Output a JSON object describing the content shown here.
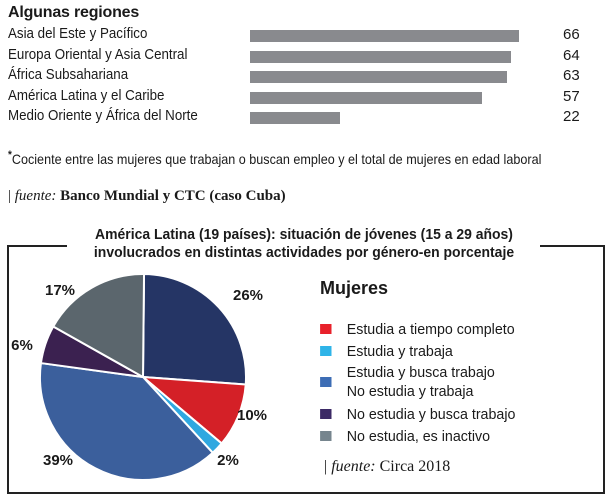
{
  "chart_data": [
    {
      "type": "bar",
      "orientation": "horizontal",
      "title": "Algunas regiones",
      "categories": [
        "Asia del Este y Pacífico",
        "Europa Oriental y Asia Central",
        "África Subsahariana",
        "América Latina y el Caribe",
        "Medio Oriente y África del Norte"
      ],
      "values": [
        66,
        64,
        63,
        57,
        22
      ],
      "value_labels": [
        "66",
        "64",
        "63",
        "57",
        "22"
      ],
      "xlim": [
        0,
        70
      ],
      "bar_color": "#898a8e",
      "note_marker": "*",
      "note": "Cociente  entre las mujeres que trabajan o buscan empleo y el total de mujeres en edad laboral",
      "source_prefix": "| ",
      "source_label": "fuente:",
      "source": "Banco Mundial y CTC (caso Cuba)"
    },
    {
      "type": "pie",
      "title_line1": "América Latina (19 países): situación de jóvenes (15 a 29 años)",
      "title_line2": "involucrados en distintas actividades por género-en porcentaje",
      "legend_title": "Mujeres",
      "slices": [
        {
          "label": "No estudia y trabaja",
          "value": 26,
          "value_label": "26%",
          "color": "#253565"
        },
        {
          "label": "Estudia a tiempo completo",
          "value": 10,
          "value_label": "10%",
          "color": "#d42027"
        },
        {
          "label": "Estudia y trabaja",
          "value": 2,
          "value_label": "2%",
          "color": "#2fa8e0"
        },
        {
          "label": "Estudia y busca trabajo",
          "value": 39,
          "value_label": "39%",
          "color": "#3b5f9c"
        },
        {
          "label": "No estudia y busca trabajo",
          "value": 6,
          "value_label": "6%",
          "color": "#3b2150"
        },
        {
          "label": "No estudia, es inactivo",
          "value": 17,
          "value_label": "17%",
          "color": "#5b666d"
        }
      ],
      "legend": [
        {
          "label": "Estudia a tiempo completo",
          "color": "#e8212b"
        },
        {
          "label": "Estudia y trabaja",
          "color": "#2fb4e8"
        },
        {
          "label": "Estudia y busca trabajo",
          "color": "#3d6db5"
        },
        {
          "label": "No estudia y trabaja",
          "color": ""
        },
        {
          "label": "No estudia y busca trabajo",
          "color": "#3c2a66"
        },
        {
          "label": "No estudia, es inactivo",
          "color": "#76858e"
        }
      ],
      "source_prefix": "| ",
      "source_label": "fuente:",
      "source": "Circa 2018",
      "legend_position": "right"
    }
  ]
}
